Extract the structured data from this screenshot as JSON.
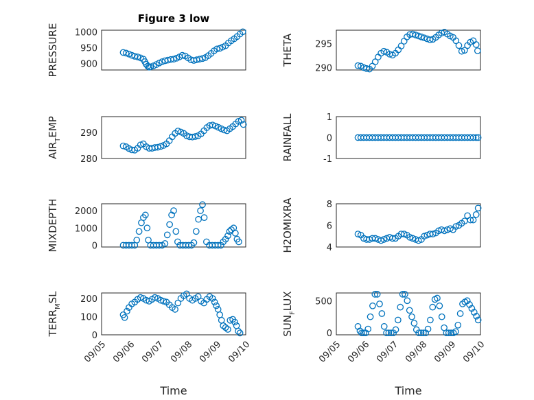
{
  "chart_data": [
    {
      "type": "scatter",
      "title": "Figure 3 low",
      "ylabel": "PRESSURE",
      "ylim": [
        880,
        1005
      ],
      "yticks": [
        900,
        950,
        1000
      ],
      "xlim": [
        0,
        5
      ],
      "xticklabels": [
        "",
        ""
      ],
      "grid": true,
      "color": "#0072BD",
      "series": [
        {
          "x": [
            0.75,
            0.85,
            0.95,
            1.05,
            1.15,
            1.25,
            1.35,
            1.45,
            1.5,
            1.55,
            1.6,
            1.65,
            1.7,
            1.8,
            1.9,
            2.0,
            2.1,
            2.2,
            2.3,
            2.4,
            2.5,
            2.6,
            2.7,
            2.8,
            2.9,
            3.0,
            3.1,
            3.2,
            3.3,
            3.4,
            3.5,
            3.6,
            3.7,
            3.8,
            3.9,
            4.0,
            4.1,
            4.2,
            4.3,
            4.4,
            4.5,
            4.6,
            4.7,
            4.8,
            4.9
          ],
          "values": [
            935,
            933,
            930,
            926,
            923,
            921,
            918,
            914,
            906,
            898,
            892,
            889,
            890,
            893,
            897,
            902,
            906,
            909,
            911,
            913,
            914,
            917,
            921,
            926,
            924,
            918,
            912,
            910,
            912,
            914,
            916,
            919,
            925,
            932,
            940,
            946,
            948,
            952,
            956,
            965,
            972,
            978,
            985,
            993,
            1000
          ]
        }
      ]
    },
    {
      "type": "scatter",
      "ylabel": "THETA",
      "ylim": [
        289.5,
        297.8
      ],
      "yticks": [
        290,
        295
      ],
      "xlim": [
        0,
        5
      ],
      "xticklabels": [
        "",
        ""
      ],
      "grid": true,
      "color": "#0072BD",
      "series": [
        {
          "x": [
            0.75,
            0.85,
            0.95,
            1.05,
            1.15,
            1.25,
            1.35,
            1.45,
            1.55,
            1.65,
            1.75,
            1.85,
            1.95,
            2.05,
            2.15,
            2.25,
            2.35,
            2.45,
            2.55,
            2.65,
            2.75,
            2.85,
            2.95,
            3.05,
            3.15,
            3.25,
            3.35,
            3.45,
            3.55,
            3.65,
            3.75,
            3.85,
            3.95,
            4.05,
            4.15,
            4.25,
            4.35,
            4.45,
            4.55,
            4.65,
            4.75,
            4.85,
            4.9
          ],
          "values": [
            290.4,
            290.3,
            290.0,
            289.8,
            289.7,
            290.3,
            291.2,
            292.2,
            293.0,
            293.4,
            293.2,
            292.8,
            292.6,
            293.0,
            293.7,
            294.5,
            295.5,
            296.4,
            296.9,
            297.0,
            296.8,
            296.6,
            296.4,
            296.2,
            296.0,
            295.8,
            295.9,
            296.3,
            296.8,
            297.2,
            297.4,
            297.0,
            296.6,
            296.3,
            295.6,
            294.6,
            293.4,
            293.6,
            294.6,
            295.3,
            295.6,
            294.8,
            293.5
          ]
        }
      ]
    },
    {
      "type": "scatter",
      "ylabel": "AIR_TEMP",
      "ylim": [
        280,
        296
      ],
      "yticks": [
        280,
        290
      ],
      "xlim": [
        0,
        5
      ],
      "xticklabels": [
        "",
        ""
      ],
      "grid": true,
      "color": "#0072BD",
      "series": [
        {
          "x": [
            0.75,
            0.85,
            0.95,
            1.05,
            1.15,
            1.25,
            1.35,
            1.45,
            1.55,
            1.65,
            1.75,
            1.85,
            1.95,
            2.05,
            2.15,
            2.25,
            2.35,
            2.45,
            2.55,
            2.65,
            2.75,
            2.85,
            2.95,
            3.05,
            3.15,
            3.25,
            3.35,
            3.45,
            3.55,
            3.65,
            3.75,
            3.85,
            3.95,
            4.05,
            4.15,
            4.25,
            4.35,
            4.45,
            4.55,
            4.65,
            4.75,
            4.85,
            4.92
          ],
          "values": [
            284.8,
            284.5,
            283.8,
            283.3,
            283.2,
            283.9,
            285.2,
            285.6,
            284.5,
            283.9,
            283.9,
            284.2,
            284.3,
            284.6,
            285.0,
            285.6,
            286.8,
            288.3,
            289.6,
            290.5,
            290.1,
            289.6,
            288.7,
            288.3,
            288.2,
            288.4,
            288.7,
            289.4,
            290.6,
            291.8,
            292.6,
            292.8,
            292.4,
            291.9,
            291.4,
            290.9,
            290.6,
            291.4,
            292.2,
            293.2,
            294.2,
            294.6,
            293.0
          ]
        }
      ]
    },
    {
      "type": "scatter",
      "ylabel": "RAINFALL",
      "ylim": [
        -1,
        1
      ],
      "yticks": [
        -1,
        0,
        1
      ],
      "xlim": [
        0,
        5
      ],
      "xticklabels": [
        "",
        ""
      ],
      "grid": true,
      "color": "#0072BD",
      "series": [
        {
          "x": [
            0.75,
            0.85,
            0.95,
            1.05,
            1.15,
            1.25,
            1.35,
            1.45,
            1.55,
            1.65,
            1.75,
            1.85,
            1.95,
            2.05,
            2.15,
            2.25,
            2.35,
            2.45,
            2.55,
            2.65,
            2.75,
            2.85,
            2.95,
            3.05,
            3.15,
            3.25,
            3.35,
            3.45,
            3.55,
            3.65,
            3.75,
            3.85,
            3.95,
            4.05,
            4.15,
            4.25,
            4.35,
            4.45,
            4.55,
            4.65,
            4.75,
            4.85,
            4.92
          ],
          "values": [
            0,
            0,
            0,
            0,
            0,
            0,
            0,
            0,
            0,
            0,
            0,
            0,
            0,
            0,
            0,
            0,
            0,
            0,
            0,
            0,
            0,
            0,
            0,
            0,
            0,
            0,
            0,
            0,
            0,
            0,
            0,
            0,
            0,
            0,
            0,
            0,
            0,
            0,
            0,
            0,
            0,
            0,
            0
          ]
        }
      ]
    },
    {
      "type": "scatter",
      "ylabel": "MIXDEPTH",
      "ylim": [
        -100,
        2400
      ],
      "yticks": [
        0,
        1000,
        2000
      ],
      "xlim": [
        0,
        5
      ],
      "xticklabels": [
        "",
        ""
      ],
      "grid": true,
      "color": "#0072BD",
      "series": [
        {
          "x": [
            0.75,
            0.85,
            0.95,
            1.05,
            1.15,
            1.22,
            1.3,
            1.38,
            1.45,
            1.52,
            1.58,
            1.62,
            1.7,
            1.8,
            1.9,
            2.0,
            2.1,
            2.2,
            2.28,
            2.36,
            2.43,
            2.5,
            2.58,
            2.64,
            2.72,
            2.82,
            2.92,
            3.02,
            3.12,
            3.2,
            3.28,
            3.36,
            3.43,
            3.5,
            3.56,
            3.64,
            3.74,
            3.84,
            3.94,
            4.04,
            4.14,
            4.22,
            4.3,
            4.38,
            4.44,
            4.5,
            4.58,
            4.64,
            4.7,
            4.76
          ],
          "values": [
            0,
            0,
            0,
            0,
            0,
            300,
            800,
            1300,
            1600,
            1750,
            1000,
            300,
            0,
            0,
            0,
            0,
            0,
            100,
            600,
            1200,
            1750,
            2000,
            800,
            200,
            0,
            0,
            0,
            0,
            0,
            150,
            800,
            1500,
            2000,
            2350,
            1600,
            200,
            0,
            0,
            0,
            0,
            0,
            200,
            350,
            550,
            800,
            900,
            1000,
            700,
            350,
            200
          ]
        }
      ]
    },
    {
      "type": "scatter",
      "ylabel": "H2OMIXRA",
      "ylim": [
        4,
        8
      ],
      "yticks": [
        4,
        6,
        8
      ],
      "xlim": [
        0,
        5
      ],
      "xticklabels": [
        "",
        ""
      ],
      "grid": true,
      "color": "#0072BD",
      "series": [
        {
          "x": [
            0.75,
            0.85,
            0.95,
            1.05,
            1.15,
            1.25,
            1.35,
            1.45,
            1.55,
            1.65,
            1.75,
            1.85,
            1.95,
            2.05,
            2.15,
            2.25,
            2.35,
            2.45,
            2.55,
            2.65,
            2.75,
            2.85,
            2.95,
            3.05,
            3.15,
            3.25,
            3.35,
            3.45,
            3.55,
            3.65,
            3.75,
            3.85,
            3.95,
            4.05,
            4.15,
            4.25,
            4.35,
            4.45,
            4.55,
            4.65,
            4.75,
            4.85,
            4.92
          ],
          "values": [
            5.2,
            5.1,
            4.8,
            4.7,
            4.7,
            4.8,
            4.8,
            4.7,
            4.6,
            4.7,
            4.8,
            4.9,
            4.8,
            4.8,
            5.0,
            5.2,
            5.2,
            5.1,
            4.9,
            4.8,
            4.7,
            4.6,
            4.7,
            5.0,
            5.1,
            5.2,
            5.2,
            5.3,
            5.5,
            5.6,
            5.5,
            5.6,
            5.7,
            5.6,
            5.9,
            6.0,
            6.2,
            6.4,
            6.9,
            6.5,
            6.5,
            7.0,
            7.6
          ]
        }
      ]
    },
    {
      "type": "scatter",
      "ylabel": "TERR_MSL",
      "ylim": [
        0,
        230
      ],
      "yticks": [
        0,
        100,
        200
      ],
      "xlim": [
        0,
        5
      ],
      "xticklabels": [
        "09/05",
        "09/06",
        "09/07",
        "09/08",
        "09/09",
        "09/10"
      ],
      "xlabel": "Time",
      "grid": true,
      "color": "#0072BD",
      "series": [
        {
          "x": [
            0.75,
            0.8,
            0.88,
            0.95,
            1.05,
            1.15,
            1.25,
            1.35,
            1.45,
            1.55,
            1.65,
            1.75,
            1.85,
            1.95,
            2.05,
            2.15,
            2.25,
            2.35,
            2.45,
            2.55,
            2.65,
            2.75,
            2.85,
            2.95,
            3.05,
            3.15,
            3.25,
            3.35,
            3.45,
            3.55,
            3.65,
            3.75,
            3.85,
            3.92,
            3.98,
            4.04,
            4.1,
            4.16,
            4.22,
            4.3,
            4.38,
            4.46,
            4.55,
            4.62,
            4.68,
            4.74,
            4.8
          ],
          "values": [
            110,
            95,
            130,
            150,
            170,
            180,
            195,
            205,
            200,
            190,
            185,
            195,
            205,
            200,
            190,
            185,
            180,
            165,
            150,
            140,
            175,
            200,
            215,
            225,
            200,
            190,
            200,
            210,
            185,
            175,
            195,
            210,
            200,
            180,
            160,
            140,
            110,
            80,
            50,
            40,
            30,
            80,
            85,
            70,
            50,
            20,
            10
          ]
        }
      ]
    },
    {
      "type": "scatter",
      "ylabel": "SUN_FLUX",
      "ylim": [
        -30,
        620
      ],
      "yticks": [
        0,
        500
      ],
      "xlim": [
        0,
        5
      ],
      "xticklabels": [
        "09/05",
        "09/06",
        "09/07",
        "09/08",
        "09/09",
        "09/10"
      ],
      "xlabel": "Time",
      "grid": true,
      "color": "#0072BD",
      "series": [
        {
          "x": [
            0.75,
            0.82,
            0.88,
            0.95,
            1.02,
            1.1,
            1.18,
            1.26,
            1.34,
            1.42,
            1.5,
            1.58,
            1.66,
            1.74,
            1.82,
            1.9,
            1.98,
            2.06,
            2.14,
            2.22,
            2.3,
            2.38,
            2.46,
            2.54,
            2.62,
            2.7,
            2.78,
            2.86,
            2.94,
            3.02,
            3.1,
            3.18,
            3.26,
            3.34,
            3.42,
            3.5,
            3.58,
            3.66,
            3.74,
            3.82,
            3.9,
            3.98,
            4.06,
            4.14,
            4.22,
            4.3,
            4.38,
            4.46,
            4.54,
            4.62,
            4.7,
            4.78,
            4.86,
            4.92
          ],
          "values": [
            100,
            30,
            0,
            0,
            0,
            60,
            250,
            420,
            600,
            600,
            450,
            300,
            100,
            0,
            0,
            0,
            0,
            50,
            200,
            400,
            600,
            600,
            500,
            350,
            250,
            150,
            50,
            0,
            0,
            0,
            0,
            60,
            200,
            400,
            520,
            540,
            420,
            250,
            80,
            0,
            0,
            0,
            0,
            20,
            120,
            300,
            450,
            480,
            500,
            440,
            380,
            320,
            260,
            200
          ]
        }
      ]
    }
  ]
}
